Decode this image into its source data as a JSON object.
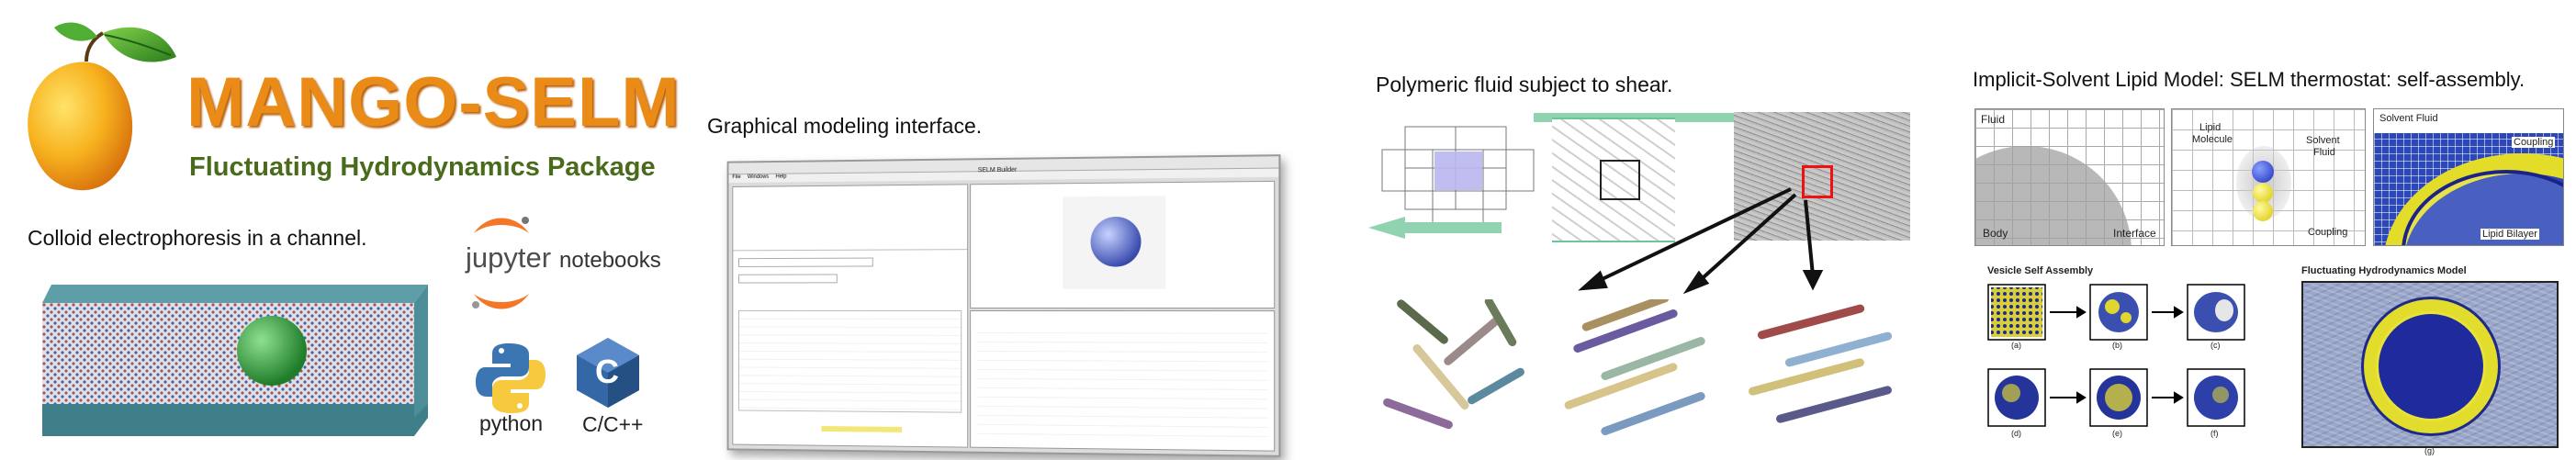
{
  "brand": {
    "title": "MANGO-SELM",
    "subtitle": "Fluctuating Hydrodynamics Package",
    "colors": {
      "title": "#e98b16",
      "subtitle": "#4b6b1c",
      "mango": "#f4a41c",
      "leaf": "#3f9a2a"
    }
  },
  "colloid": {
    "caption": "Colloid electrophoresis in a channel."
  },
  "tools": {
    "jupyter_word": "jupyter",
    "jupyter_suffix": "notebooks",
    "python_label": "python",
    "cpp_label": "C/C++",
    "cpp_logo_letter": "C"
  },
  "gui": {
    "caption": "Graphical modeling interface.",
    "window_title": "SELM Builder",
    "menu": [
      "File",
      "Windows",
      "Help"
    ]
  },
  "polymer": {
    "caption": "Polymeric fluid subject to shear."
  },
  "lipid": {
    "caption": "Implicit-Solvent Lipid Model: SELM thermostat: self-assembly.",
    "panel1": {
      "fluid": "Fluid",
      "body": "Body",
      "interface": "Interface"
    },
    "panel2": {
      "lipid_line1": "Lipid",
      "lipid_line2": "Molecule",
      "solvent_line1": "Solvent",
      "solvent_line2": "Fluid",
      "coupling": "Coupling"
    },
    "panel3": {
      "solvent_fluid": "Solvent Fluid",
      "coupling": "Coupling",
      "lipid_bilayer": "Lipid Bilayer"
    },
    "vesicle_title": "Vesicle Self Assembly",
    "vesicle_labels": [
      "(a)",
      "(b)",
      "(c)",
      "(d)",
      "(e)",
      "(f)"
    ],
    "fhm_title": "Fluctuating Hydrodynamics Model",
    "fhm_label": "(g)"
  }
}
